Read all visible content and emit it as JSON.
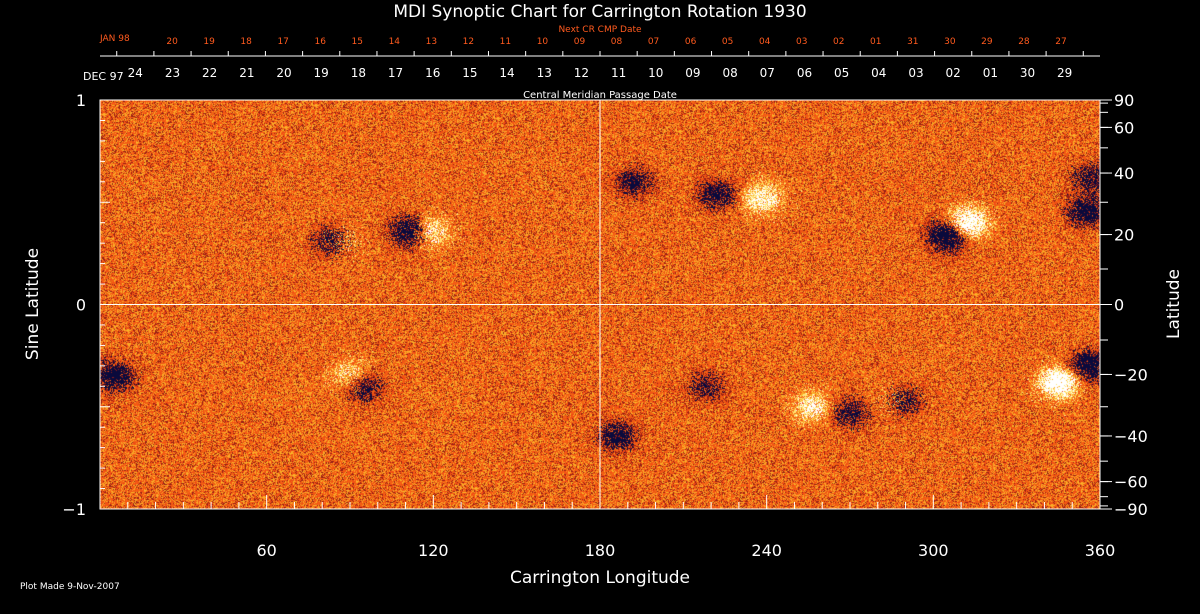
{
  "chart_data": {
    "type": "heatmap",
    "title": "MDI Synoptic Chart for Carrington Rotation 1930",
    "xlabel": "Carrington Longitude",
    "ylabel_left": "Sine Latitude",
    "ylabel_right": "Latitude",
    "xlim": [
      0,
      360
    ],
    "ylim": [
      -1,
      1
    ],
    "x_ticks": [
      60,
      120,
      180,
      240,
      300,
      360
    ],
    "y_ticks_left": [
      -1,
      0,
      1
    ],
    "y_ticks_right": [
      90,
      60,
      40,
      20,
      0,
      -20,
      -40,
      -60,
      -90
    ],
    "top_axis_title": "Central Meridian Passage Date",
    "top_axis_month": "DEC 97",
    "top_axis_dates": [
      "24",
      "23",
      "22",
      "21",
      "20",
      "19",
      "18",
      "17",
      "16",
      "15",
      "14",
      "13",
      "12",
      "11",
      "10",
      "09",
      "08",
      "07",
      "06",
      "05",
      "04",
      "03",
      "02",
      "01",
      "30",
      "29"
    ],
    "next_axis_title": "Next CR CMP Date",
    "next_axis_month": "JAN 98",
    "next_axis_dates": [
      "20",
      "19",
      "18",
      "17",
      "16",
      "15",
      "14",
      "13",
      "12",
      "11",
      "10",
      "09",
      "08",
      "07",
      "06",
      "05",
      "04",
      "03",
      "02",
      "01",
      "31",
      "30",
      "29",
      "28",
      "27"
    ],
    "gridlines": {
      "longitude": 180,
      "sine_latitude": 0
    },
    "colors": {
      "background": "#e8501a",
      "negative": "#0a0a40",
      "positive": "#ffffff",
      "next_axis": "#ff5a1e"
    },
    "features": [
      {
        "lon": 84,
        "sinlat": 0.31,
        "polarity": "negative",
        "strength": 0.9
      },
      {
        "lon": 86,
        "sinlat": 0.31,
        "polarity": "positive",
        "strength": 0.6
      },
      {
        "lon": 112,
        "sinlat": 0.36,
        "polarity": "negative",
        "strength": 0.9
      },
      {
        "lon": 118,
        "sinlat": 0.36,
        "polarity": "positive",
        "strength": 0.7
      },
      {
        "lon": 305,
        "sinlat": 0.34,
        "polarity": "negative",
        "strength": 1.0
      },
      {
        "lon": 312,
        "sinlat": 0.4,
        "polarity": "positive",
        "strength": 1.0
      },
      {
        "lon": 222,
        "sinlat": 0.54,
        "polarity": "negative",
        "strength": 0.6
      },
      {
        "lon": 238,
        "sinlat": 0.52,
        "polarity": "positive",
        "strength": 0.6
      },
      {
        "lon": 192,
        "sinlat": 0.6,
        "polarity": "negative",
        "strength": 0.5
      },
      {
        "lon": 355,
        "sinlat": 0.46,
        "polarity": "negative",
        "strength": 0.7
      },
      {
        "lon": 357,
        "sinlat": 0.62,
        "polarity": "negative",
        "strength": 0.5
      },
      {
        "lon": 5,
        "sinlat": -0.35,
        "polarity": "negative",
        "strength": 0.7
      },
      {
        "lon": 95,
        "sinlat": -0.4,
        "polarity": "negative",
        "strength": 0.5
      },
      {
        "lon": 90,
        "sinlat": -0.34,
        "polarity": "positive",
        "strength": 0.4
      },
      {
        "lon": 288,
        "sinlat": -0.47,
        "polarity": "negative",
        "strength": 0.8
      },
      {
        "lon": 286,
        "sinlat": -0.47,
        "polarity": "positive",
        "strength": 0.5
      },
      {
        "lon": 345,
        "sinlat": -0.38,
        "polarity": "positive",
        "strength": 1.0
      },
      {
        "lon": 356,
        "sinlat": -0.3,
        "polarity": "negative",
        "strength": 0.8
      },
      {
        "lon": 270,
        "sinlat": -0.53,
        "polarity": "negative",
        "strength": 0.5
      },
      {
        "lon": 256,
        "sinlat": -0.5,
        "polarity": "positive",
        "strength": 0.5
      },
      {
        "lon": 186,
        "sinlat": -0.64,
        "polarity": "negative",
        "strength": 0.6
      },
      {
        "lon": 218,
        "sinlat": -0.4,
        "polarity": "negative",
        "strength": 0.4
      }
    ]
  },
  "footer": {
    "plot_made": "Plot Made  9-Nov-2007"
  }
}
